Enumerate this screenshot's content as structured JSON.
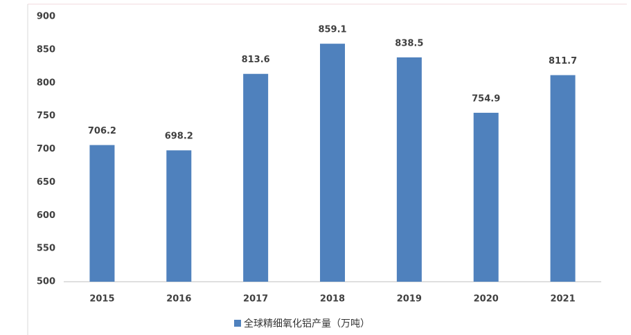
{
  "chart_data": {
    "type": "bar",
    "categories": [
      "2015",
      "2016",
      "2017",
      "2018",
      "2019",
      "2020",
      "2021"
    ],
    "series": [
      {
        "name": "全球精细氧化铝产量（万吨）",
        "color": "#4f81bd",
        "values": [
          706.2,
          698.2,
          813.6,
          859.1,
          838.5,
          754.9,
          811.7
        ]
      }
    ],
    "ylim": [
      500,
      900
    ],
    "yticks": [
      500,
      550,
      600,
      650,
      700,
      750,
      800,
      850,
      900
    ],
    "grid": false,
    "legend": "bottom"
  }
}
